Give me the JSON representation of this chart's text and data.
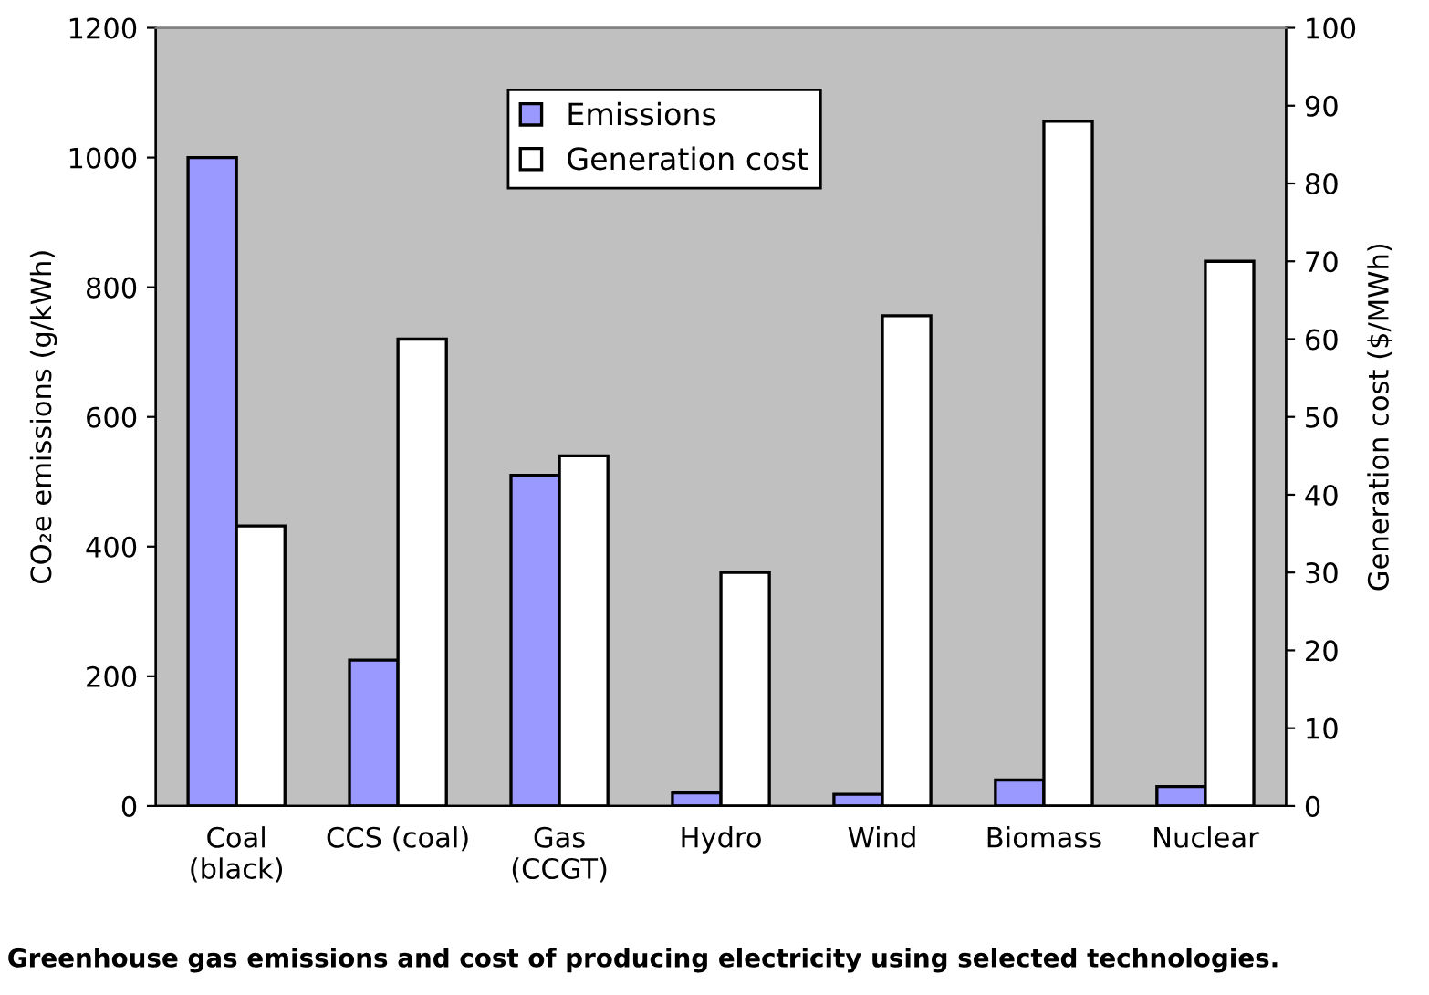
{
  "chart_data": {
    "type": "bar",
    "categories": [
      "Coal\n(black)",
      "CCS (coal)",
      "Gas\n(CCGT)",
      "Hydro",
      "Wind",
      "Biomass",
      "Nuclear"
    ],
    "series": [
      {
        "name": "Emissions",
        "color": "#9999ff",
        "values": [
          1000,
          225,
          510,
          20,
          18,
          40,
          30
        ]
      },
      {
        "name": "Generation cost",
        "color": "#ffffff",
        "axis": "y2",
        "values": [
          36,
          60,
          45,
          30,
          63,
          88,
          70
        ]
      }
    ],
    "ylabel": "CO₂e emissions (g/kWh)",
    "y2label": "Generation cost ($/MWh)",
    "ylim": [
      0,
      1200
    ],
    "yticks": [
      0,
      200,
      400,
      600,
      800,
      1000,
      1200
    ],
    "y2lim": [
      0,
      100
    ],
    "y2ticks": [
      0,
      10,
      20,
      30,
      40,
      50,
      60,
      70,
      80,
      90,
      100
    ],
    "legend": "top",
    "grid": false,
    "annotations": [
      "Greenhouse gas emissions and cost of producing electricity using selected technologies."
    ]
  }
}
